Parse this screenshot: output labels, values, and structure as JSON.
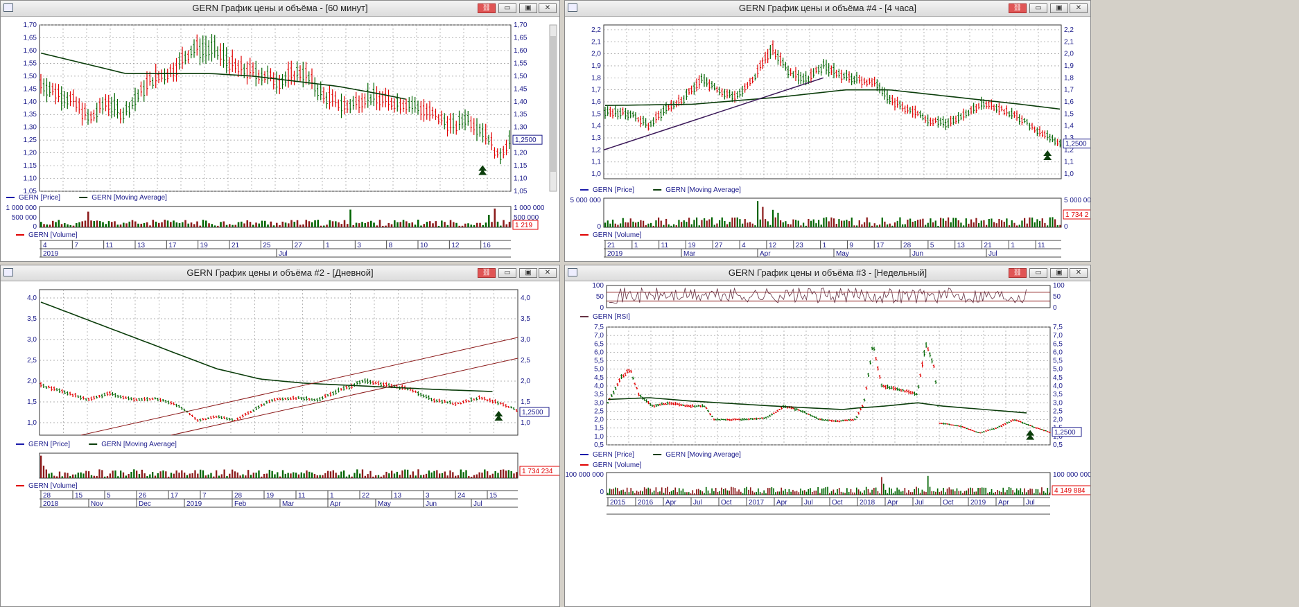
{
  "colors": {
    "up": "#006400",
    "down": "#e00000",
    "ma": "#0b3d0b",
    "rsi": "#663344",
    "trend": "#3c1a5a",
    "chan": "#8b1a1a",
    "scale": "#1a1a8a"
  },
  "windows": [
    {
      "id": "w1",
      "title": "GERN График цены и объёма - [60 минут]",
      "price_ticks": [
        "1,70",
        "1,65",
        "1,60",
        "1,55",
        "1,50",
        "1,45",
        "1,40",
        "1,35",
        "1,30",
        "1,25",
        "1,20",
        "1,15",
        "1,10",
        "1,05"
      ],
      "price_label": "1,2500",
      "legend": [
        "GERN [Price]",
        "GERN [Moving Average]"
      ],
      "vol_ticks": [
        "1 000 000",
        "500 000",
        "0"
      ],
      "vol_label": "1 219",
      "vol_legend": "GERN [Volume]",
      "time_top": [
        "4",
        "7",
        "11",
        "13",
        "17",
        "19",
        "21",
        "25",
        "27",
        "1",
        "3",
        "8",
        "10",
        "12",
        "16"
      ],
      "time_bottom": [
        "2019",
        "Jul"
      ]
    },
    {
      "id": "w2",
      "title": "GERN График цены и объёма #4 - [4 часа]",
      "price_ticks": [
        "2,2",
        "2,1",
        "2,0",
        "1,9",
        "1,8",
        "1,7",
        "1,6",
        "1,5",
        "1,4",
        "1,3",
        "1,2",
        "1,1",
        "1,0"
      ],
      "price_label": "1,2500",
      "legend": [
        "GERN [Price]",
        "GERN [Moving Average]"
      ],
      "vol_ticks": [
        "5 000 000",
        "0"
      ],
      "vol_label": "1 734 2",
      "vol_legend": "GERN [Volume]",
      "time_top": [
        "21",
        "1",
        "11",
        "19",
        "27",
        "4",
        "12",
        "23",
        "1",
        "9",
        "17",
        "28",
        "5",
        "13",
        "21",
        "1",
        "11"
      ],
      "time_bottom": [
        "2019",
        "Mar",
        "Apr",
        "May",
        "Jun",
        "Jul"
      ]
    },
    {
      "id": "w3",
      "title": "GERN График цены и объёма #2 - [Дневной]",
      "price_ticks": [
        "4,0",
        "3,5",
        "3,0",
        "2,5",
        "2,0",
        "1,5",
        "1,0"
      ],
      "price_label": "1,2500",
      "legend": [
        "GERN [Price]",
        "GERN [Moving Average]"
      ],
      "vol_label": "1 734 234",
      "vol_legend": "GERN [Volume]",
      "time_top": [
        "28",
        "15",
        "5",
        "26",
        "17",
        "7",
        "28",
        "19",
        "11",
        "1",
        "22",
        "13",
        "3",
        "24",
        "15"
      ],
      "time_bottom": [
        "2018",
        "Nov",
        "Dec",
        "2019",
        "Feb",
        "Mar",
        "Apr",
        "May",
        "Jun",
        "Jul"
      ]
    },
    {
      "id": "w4",
      "title": "GERN График цены и объёма #3 - [Недельный]",
      "rsi_ticks": [
        "100",
        "50",
        "0"
      ],
      "rsi_legend": "GERN [RSI]",
      "price_ticks": [
        "7,5",
        "7,0",
        "6,5",
        "6,0",
        "5,5",
        "5,0",
        "4,5",
        "4,0",
        "3,5",
        "3,0",
        "2,5",
        "2,0",
        "1,5",
        "1,0",
        "0,5"
      ],
      "price_label": "1,2500",
      "legend": [
        "GERN [Price]",
        "GERN [Moving Average]"
      ],
      "vol_legend": "GERN [Volume]",
      "vol_ticks": [
        "100 000 000",
        "0"
      ],
      "vol_label": "4 149 884",
      "time_bottom": [
        "2015",
        "2016",
        "Apr",
        "Jul",
        "Oct",
        "2017",
        "Apr",
        "Jul",
        "Oct",
        "2018",
        "Apr",
        "Jul",
        "Oct",
        "2019",
        "Apr",
        "Jul"
      ]
    }
  ],
  "chart_data": [
    {
      "type": "candlestick",
      "title": "GERN График цены и объёма - [60 минут]",
      "ylim": [
        1.05,
        1.7
      ],
      "series": [
        {
          "name": "GERN [Price]",
          "points": [
            [
              0,
              1.47
            ],
            [
              6,
              1.4
            ],
            [
              9,
              1.33
            ],
            [
              12,
              1.4
            ],
            [
              15,
              1.35
            ],
            [
              20,
              1.48
            ],
            [
              24,
              1.52
            ],
            [
              28,
              1.61
            ],
            [
              32,
              1.6
            ],
            [
              36,
              1.53
            ],
            [
              40,
              1.51
            ],
            [
              44,
              1.48
            ],
            [
              48,
              1.52
            ],
            [
              52,
              1.42
            ],
            [
              56,
              1.38
            ],
            [
              60,
              1.42
            ],
            [
              64,
              1.4
            ],
            [
              68,
              1.39
            ],
            [
              72,
              1.35
            ],
            [
              76,
              1.3
            ],
            [
              78,
              1.34
            ],
            [
              82,
              1.27
            ],
            [
              84,
              1.18
            ],
            [
              86,
              1.25
            ]
          ]
        },
        {
          "name": "GERN [Moving Average]",
          "points": [
            [
              0,
              1.59
            ],
            [
              10,
              1.55
            ],
            [
              20,
              1.51
            ],
            [
              30,
              1.51
            ],
            [
              40,
              1.51
            ],
            [
              50,
              1.5
            ],
            [
              60,
              1.48
            ],
            [
              70,
              1.46
            ],
            [
              80,
              1.43
            ],
            [
              86,
              1.41
            ]
          ]
        }
      ]
    },
    {
      "type": "candlestick",
      "title": "GERN График цены и объёма #4 - [4 часа]",
      "ylim": [
        1.0,
        2.2
      ],
      "series": [
        {
          "name": "GERN [Price]",
          "points": [
            [
              0,
              1.52
            ],
            [
              6,
              1.5
            ],
            [
              10,
              1.4
            ],
            [
              14,
              1.55
            ],
            [
              18,
              1.62
            ],
            [
              22,
              1.8
            ],
            [
              26,
              1.68
            ],
            [
              30,
              1.65
            ],
            [
              34,
              1.8
            ],
            [
              38,
              2.05
            ],
            [
              42,
              1.85
            ],
            [
              46,
              1.78
            ],
            [
              50,
              1.9
            ],
            [
              54,
              1.82
            ],
            [
              58,
              1.78
            ],
            [
              62,
              1.75
            ],
            [
              66,
              1.6
            ],
            [
              70,
              1.52
            ],
            [
              74,
              1.45
            ],
            [
              78,
              1.42
            ],
            [
              82,
              1.5
            ],
            [
              86,
              1.58
            ],
            [
              90,
              1.55
            ],
            [
              94,
              1.48
            ],
            [
              98,
              1.38
            ],
            [
              102,
              1.3
            ],
            [
              104,
              1.25
            ]
          ]
        },
        {
          "name": "GERN [Moving Average]",
          "points": [
            [
              0,
              1.57
            ],
            [
              20,
              1.58
            ],
            [
              40,
              1.64
            ],
            [
              55,
              1.7
            ],
            [
              65,
              1.7
            ],
            [
              80,
              1.64
            ],
            [
              95,
              1.58
            ],
            [
              104,
              1.54
            ]
          ]
        }
      ]
    },
    {
      "type": "candlestick",
      "title": "GERN График цены и объёма #2 - [Дневной]",
      "ylim": [
        0.7,
        4.2
      ],
      "series": [
        {
          "name": "GERN [Price]",
          "points": [
            [
              0,
              1.9
            ],
            [
              5,
              1.75
            ],
            [
              10,
              1.55
            ],
            [
              15,
              1.7
            ],
            [
              20,
              1.55
            ],
            [
              25,
              1.58
            ],
            [
              30,
              1.4
            ],
            [
              34,
              1.05
            ],
            [
              38,
              1.15
            ],
            [
              42,
              1.05
            ],
            [
              46,
              1.3
            ],
            [
              50,
              1.55
            ],
            [
              55,
              1.6
            ],
            [
              60,
              1.55
            ],
            [
              65,
              1.8
            ],
            [
              70,
              2.0
            ],
            [
              75,
              1.9
            ],
            [
              80,
              1.8
            ],
            [
              85,
              1.55
            ],
            [
              90,
              1.45
            ],
            [
              95,
              1.6
            ],
            [
              100,
              1.45
            ],
            [
              103,
              1.3
            ]
          ]
        },
        {
          "name": "GERN [Moving Average]",
          "points": [
            [
              0,
              3.9
            ],
            [
              10,
              3.5
            ],
            [
              20,
              3.1
            ],
            [
              30,
              2.7
            ],
            [
              40,
              2.3
            ],
            [
              50,
              2.05
            ],
            [
              60,
              1.95
            ],
            [
              70,
              1.9
            ],
            [
              80,
              1.85
            ],
            [
              90,
              1.8
            ],
            [
              103,
              1.75
            ]
          ]
        }
      ]
    },
    {
      "type": "candlestick",
      "title": "GERN График цены и объёма #3 - [Недельный]",
      "ylim": [
        0.5,
        7.5
      ],
      "series": [
        {
          "name": "GERN [Price]",
          "points": [
            [
              0,
              3.0
            ],
            [
              3,
              4.5
            ],
            [
              5,
              5.0
            ],
            [
              7,
              3.5
            ],
            [
              10,
              2.8
            ],
            [
              14,
              3.0
            ],
            [
              18,
              2.8
            ],
            [
              22,
              2.8
            ],
            [
              24,
              2.0
            ],
            [
              30,
              2.0
            ],
            [
              36,
              2.1
            ],
            [
              40,
              2.8
            ],
            [
              44,
              2.5
            ],
            [
              48,
              2.0
            ],
            [
              52,
              1.9
            ],
            [
              56,
              2.0
            ],
            [
              58,
              3.0
            ],
            [
              60,
              6.5
            ],
            [
              62,
              4.0
            ],
            [
              66,
              3.8
            ],
            [
              70,
              3.5
            ],
            [
              72,
              6.5
            ],
            [
              74,
              5.0
            ],
            [
              75,
              1.8
            ],
            [
              80,
              1.6
            ],
            [
              84,
              1.2
            ],
            [
              88,
              1.5
            ],
            [
              92,
              2.0
            ],
            [
              96,
              1.6
            ],
            [
              100,
              1.25
            ]
          ]
        },
        {
          "name": "GERN [Moving Average]",
          "points": [
            [
              0,
              3.2
            ],
            [
              10,
              3.3
            ],
            [
              20,
              3.1
            ],
            [
              40,
              2.8
            ],
            [
              56,
              2.6
            ],
            [
              60,
              2.7
            ],
            [
              66,
              2.8
            ],
            [
              74,
              3.0
            ],
            [
              80,
              2.8
            ],
            [
              90,
              2.6
            ],
            [
              100,
              2.4
            ]
          ]
        }
      ]
    }
  ]
}
